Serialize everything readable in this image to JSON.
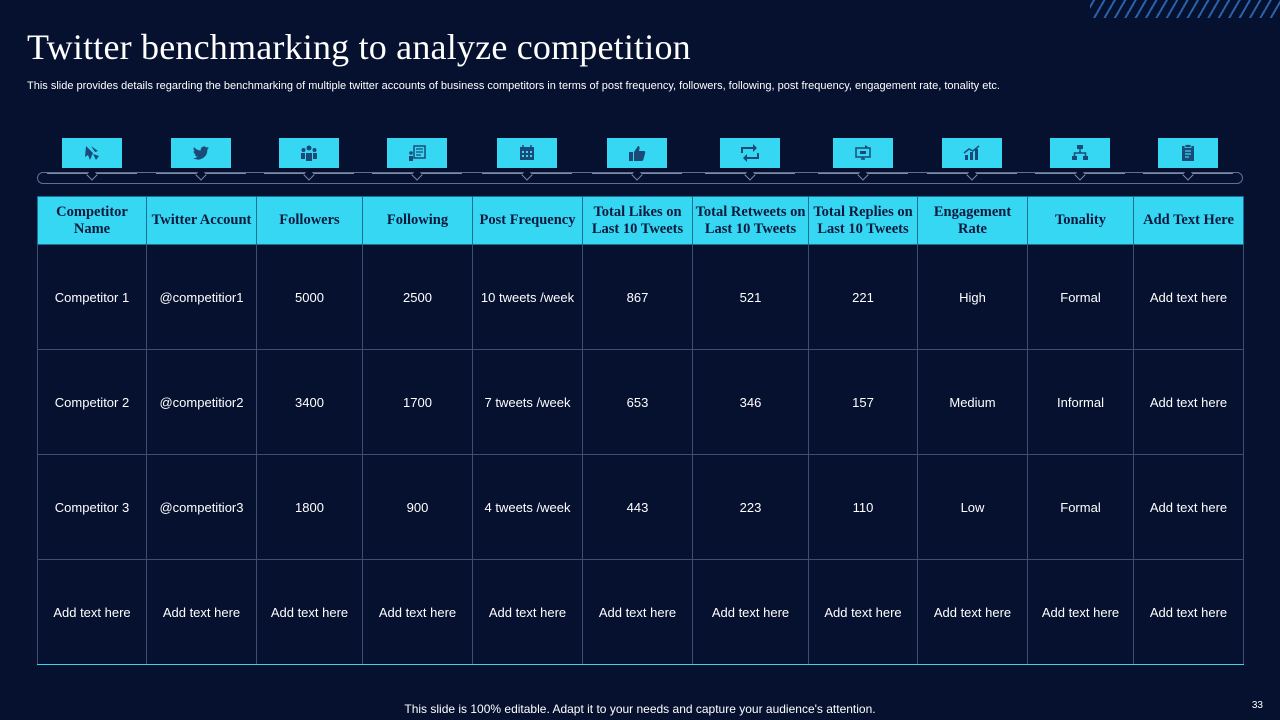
{
  "title": "Twitter benchmarking to analyze competition",
  "subtitle": "This slide provides details regarding the benchmarking of multiple twitter accounts of business competitors in terms of post frequency, followers, following, post frequency, engagement rate, tonality etc.",
  "icons": [
    "competitor-icon",
    "twitter-bird-icon",
    "followers-group-icon",
    "following-list-icon",
    "calendar-icon",
    "thumbs-up-icon",
    "retweet-icon",
    "reply-computer-icon",
    "growth-chart-icon",
    "flowchart-icon",
    "clipboard-icon"
  ],
  "table": {
    "headers": [
      "Competitor Name",
      "Twitter Account",
      "Followers",
      "Following",
      "Post Frequency",
      "Total Likes on Last 10 Tweets",
      "Total Retweets on Last 10 Tweets",
      "Total Replies on Last 10 Tweets",
      "Engagement Rate",
      "Tonality",
      "Add Text Here"
    ],
    "rows": [
      [
        "Competitor  1",
        "@competitior1",
        "5000",
        "2500",
        "10 tweets /week",
        "867",
        "521",
        "221",
        "High",
        "Formal",
        "Add text here"
      ],
      [
        "Competitor  2",
        "@competitior2",
        "3400",
        "1700",
        "7 tweets /week",
        "653",
        "346",
        "157",
        "Medium",
        "Informal",
        "Add text here"
      ],
      [
        "Competitor  3",
        "@competitior3",
        "1800",
        "900",
        "4 tweets /week",
        "443",
        "223",
        "110",
        "Low",
        "Formal",
        "Add text here"
      ],
      [
        "Add text here",
        "Add text here",
        "Add text here",
        "Add text here",
        "Add text here",
        "Add text here",
        "Add text here",
        "Add text here",
        "Add text here",
        "Add text here",
        "Add text here"
      ]
    ]
  },
  "footer": "This slide is 100% editable. Adapt it to your needs and capture your audience's attention.",
  "page_number": "33",
  "colors": {
    "background": "#06112f",
    "accent": "#36d7f3",
    "header_text": "#0a1a3d"
  }
}
